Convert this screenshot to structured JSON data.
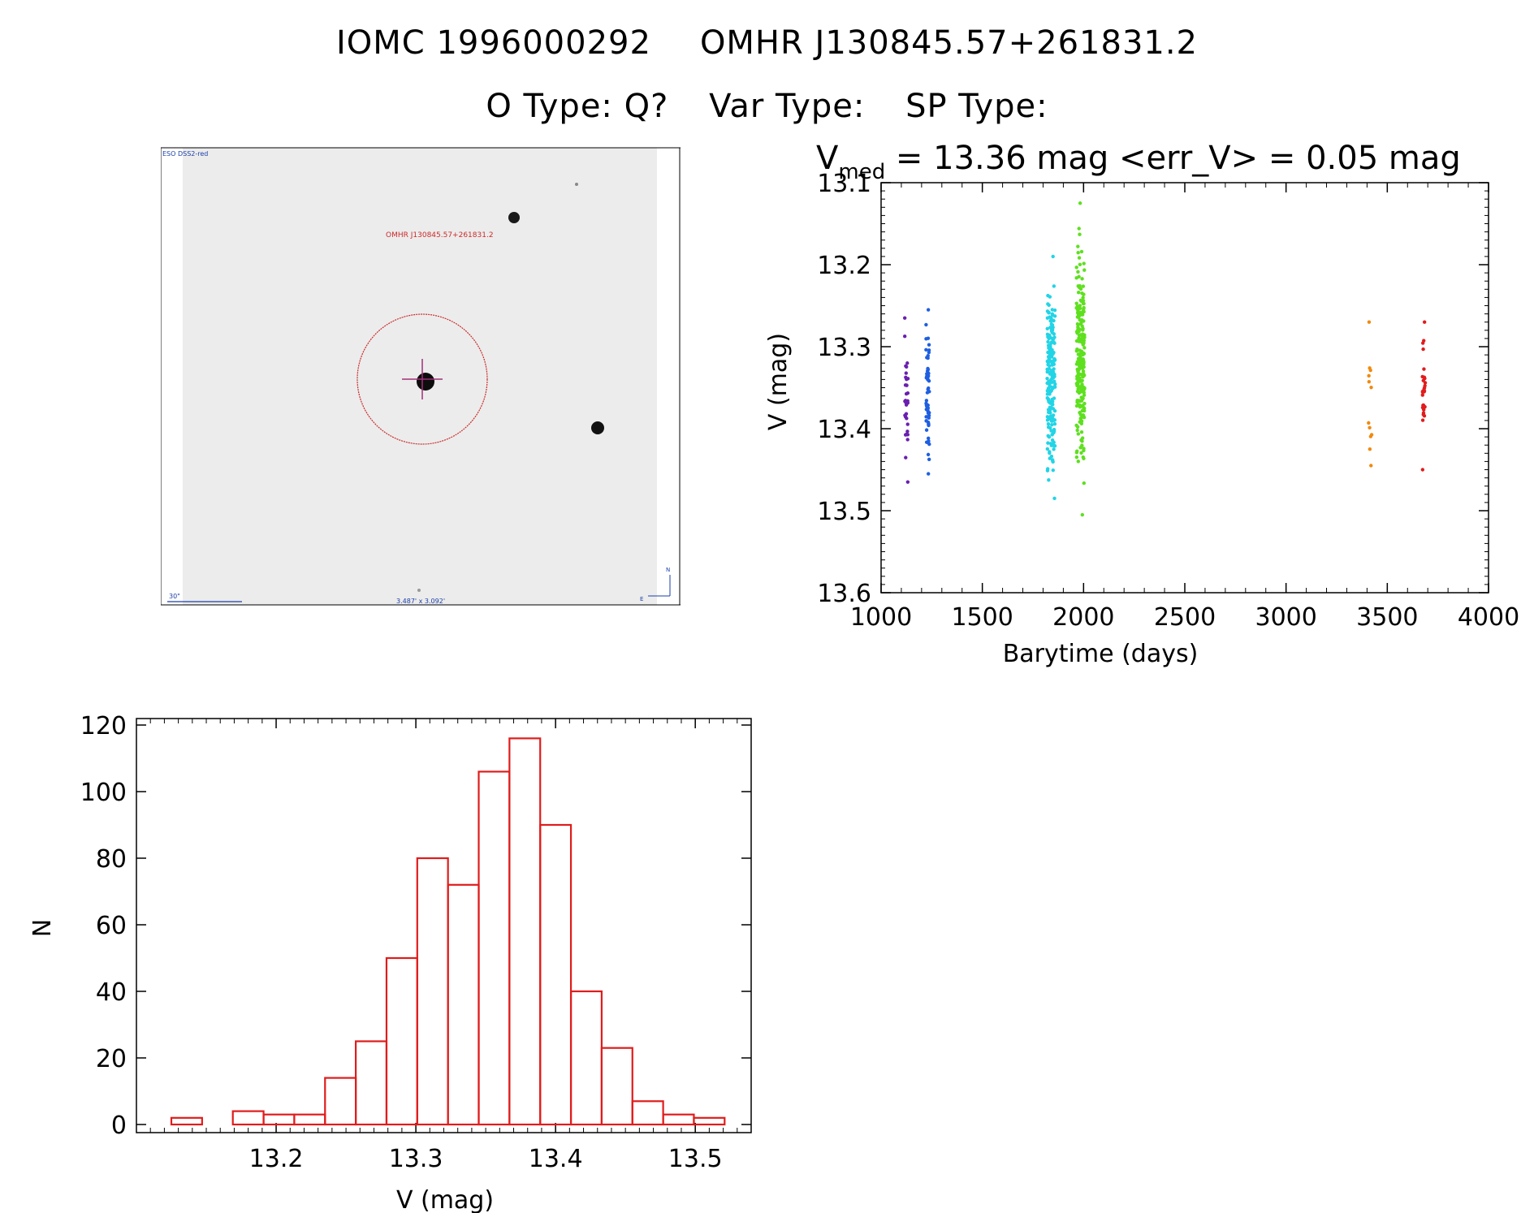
{
  "header": {
    "id_iomc": "IOMC 1996000292",
    "id_omhr": "OMHR J130845.57+261831.2",
    "o_type": "O Type: Q?",
    "var_type": "Var Type:",
    "sp_type": "SP Type:"
  },
  "sky_image": {
    "survey_label": "ESO DSS2-red",
    "target_label": "OMHR J130845.57+261831.2",
    "scale_label": "30\"",
    "size_label": "3.487' x 3.092'",
    "north_label": "N",
    "east_label": "E",
    "colors": {
      "target_circle": "#cc2a2a",
      "crosshair": "#a0307a",
      "text_red": "#cc2a2a",
      "text_blue": "#1a3fa8"
    }
  },
  "chart_data": [
    {
      "type": "scatter",
      "title_prefix": "V",
      "title_sub": "med",
      "title_rest": " = 13.36 mag <err_V> = 0.05 mag",
      "xlabel": "Barytime (days)",
      "ylabel": "V (mag)",
      "xlim": [
        1000,
        4000
      ],
      "ylim": [
        13.6,
        13.1
      ],
      "xticks": [
        1000,
        1500,
        2000,
        2500,
        3000,
        3500,
        4000
      ],
      "yticks": [
        13.1,
        13.2,
        13.3,
        13.4,
        13.5,
        13.6
      ],
      "groups": [
        {
          "x": 1125,
          "ymin": 13.265,
          "ymax": 13.465,
          "n": 35,
          "color": "#6a1fb0"
        },
        {
          "x": 1230,
          "ymin": 13.255,
          "ymax": 13.455,
          "n": 60,
          "color": "#1f5fe0"
        },
        {
          "x": 1840,
          "ymin": 13.19,
          "ymax": 13.485,
          "n": 200,
          "color": "#22d4e6"
        },
        {
          "x": 1985,
          "ymin": 13.125,
          "ymax": 13.505,
          "n": 230,
          "color": "#5ee01f"
        },
        {
          "x": 3415,
          "ymin": 13.27,
          "ymax": 13.445,
          "n": 12,
          "color": "#f08a10"
        },
        {
          "x": 3680,
          "ymin": 13.27,
          "ymax": 13.45,
          "n": 30,
          "color": "#e01c1c"
        }
      ]
    },
    {
      "type": "bar",
      "xlabel": "V (mag)",
      "ylabel": "N",
      "xlim": [
        13.1,
        13.54
      ],
      "ylim": [
        0,
        120
      ],
      "xticks": [
        13.2,
        13.3,
        13.4,
        13.5
      ],
      "yticks": [
        0,
        20,
        40,
        60,
        80,
        100,
        120
      ],
      "bin_edges": [
        13.125,
        13.147,
        13.169,
        13.191,
        13.213,
        13.235,
        13.257,
        13.279,
        13.301,
        13.323,
        13.345,
        13.367,
        13.389,
        13.411,
        13.433,
        13.455,
        13.477,
        13.499,
        13.521
      ],
      "values": [
        2,
        0,
        4,
        3,
        3,
        14,
        25,
        50,
        80,
        72,
        106,
        116,
        90,
        40,
        23,
        7,
        3,
        2
      ],
      "color": "#e01c1c"
    }
  ]
}
